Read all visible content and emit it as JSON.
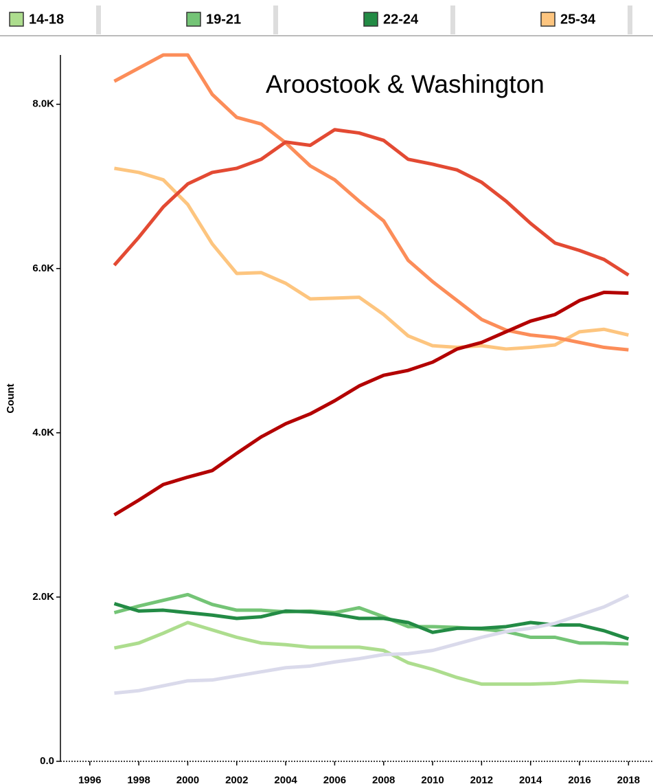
{
  "chart_data": {
    "type": "line",
    "annotation": "Aroostook & Washington",
    "ylabel": "Count",
    "x": [
      1997,
      1998,
      1999,
      2000,
      2001,
      2002,
      2003,
      2004,
      2005,
      2006,
      2007,
      2008,
      2009,
      2010,
      2011,
      2012,
      2013,
      2014,
      2015,
      2016,
      2017,
      2018
    ],
    "xlim": [
      1994.8,
      2019
    ],
    "xticks": [
      1996,
      1998,
      2000,
      2002,
      2004,
      2006,
      2008,
      2010,
      2012,
      2014,
      2016,
      2018
    ],
    "ylim": [
      0,
      8600
    ],
    "yticks": [
      {
        "value": 0,
        "label": "0.0"
      },
      {
        "value": 2000,
        "label": "2.0K"
      },
      {
        "value": 4000,
        "label": "4.0K"
      },
      {
        "value": 6000,
        "label": "6.0K"
      },
      {
        "value": 8000,
        "label": "8.0K"
      }
    ],
    "series": [
      {
        "name": "14-18",
        "color": "#addd8e",
        "values": [
          1380,
          1440,
          1560,
          1690,
          1600,
          1510,
          1440,
          1420,
          1390,
          1390,
          1390,
          1350,
          1200,
          1120,
          1020,
          940,
          940,
          940,
          950,
          980,
          970,
          960
        ]
      },
      {
        "name": "19-21",
        "color": "#74c476",
        "values": [
          1810,
          1890,
          1960,
          2030,
          1910,
          1840,
          1840,
          1820,
          1830,
          1810,
          1870,
          1760,
          1640,
          1640,
          1630,
          1610,
          1580,
          1510,
          1510,
          1440,
          1440,
          1430
        ]
      },
      {
        "name": "22-24",
        "color": "#238b45",
        "values": [
          1920,
          1830,
          1840,
          1810,
          1780,
          1740,
          1760,
          1830,
          1820,
          1790,
          1740,
          1740,
          1690,
          1570,
          1620,
          1620,
          1640,
          1690,
          1660,
          1660,
          1590,
          1490
        ]
      },
      {
        "name": "25-34",
        "color": "#fdc57f",
        "values": [
          7220,
          7170,
          7080,
          6780,
          6300,
          5940,
          5950,
          5820,
          5630,
          5640,
          5650,
          5440,
          5180,
          5060,
          5040,
          5060,
          5020,
          5040,
          5070,
          5230,
          5260,
          5190
        ]
      },
      {
        "color": "#fc8d59",
        "values": [
          8280,
          8440,
          8600,
          8600,
          8120,
          7840,
          7760,
          7530,
          7250,
          7080,
          6820,
          6580,
          6100,
          5840,
          5610,
          5380,
          5250,
          5190,
          5160,
          5100,
          5040,
          5010
        ]
      },
      {
        "color": "#e34a33",
        "values": [
          6040,
          6380,
          6750,
          7030,
          7170,
          7220,
          7330,
          7540,
          7500,
          7690,
          7650,
          7560,
          7330,
          7270,
          7200,
          7050,
          6820,
          6550,
          6310,
          6220,
          6110,
          5920
        ]
      },
      {
        "color": "#b30000",
        "values": [
          3000,
          3180,
          3370,
          3460,
          3540,
          3750,
          3950,
          4110,
          4230,
          4390,
          4570,
          4700,
          4760,
          4860,
          5020,
          5100,
          5230,
          5360,
          5440,
          5610,
          5710,
          5700
        ]
      },
      {
        "color": "#dadaeb",
        "values": [
          830,
          860,
          920,
          980,
          990,
          1040,
          1090,
          1140,
          1160,
          1210,
          1250,
          1300,
          1310,
          1350,
          1430,
          1510,
          1580,
          1620,
          1680,
          1780,
          1880,
          2020
        ]
      }
    ]
  }
}
